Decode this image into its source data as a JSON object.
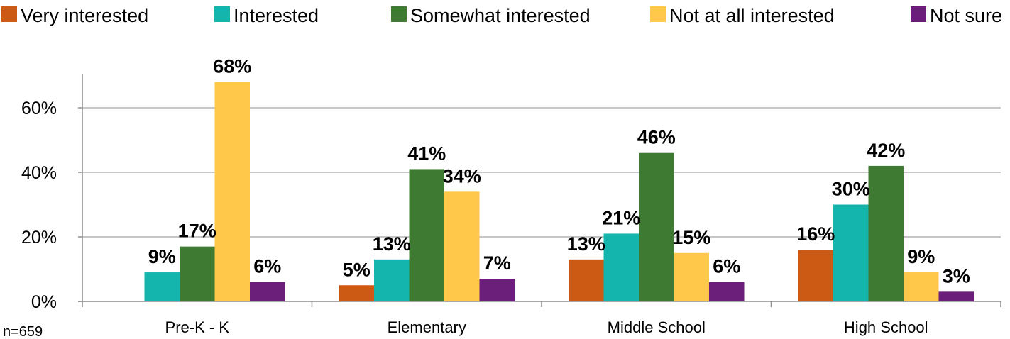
{
  "chart_data": {
    "type": "bar",
    "categories": [
      "Pre-K - K",
      "Elementary",
      "Middle School",
      "High School"
    ],
    "series": [
      {
        "name": "Very interested",
        "color": "#CC5A14",
        "values": [
          null,
          5,
          13,
          16
        ],
        "labels": [
          "",
          "5%",
          "13%",
          "16%"
        ]
      },
      {
        "name": "Interested",
        "color": "#14B5AC",
        "values": [
          9,
          13,
          21,
          30
        ],
        "labels": [
          "9%",
          "13%",
          "21%",
          "30%"
        ]
      },
      {
        "name": "Somewhat interested",
        "color": "#3E7A32",
        "values": [
          17,
          41,
          46,
          42
        ],
        "labels": [
          "17%",
          "41%",
          "46%",
          "42%"
        ]
      },
      {
        "name": "Not at all interested",
        "color": "#FFC84B",
        "values": [
          68,
          34,
          15,
          9
        ],
        "labels": [
          "68%",
          "34%",
          "15%",
          "9%"
        ]
      },
      {
        "name": "Not sure",
        "color": "#6B1F7A",
        "values": [
          6,
          7,
          6,
          3
        ],
        "labels": [
          "6%",
          "7%",
          "6%",
          "3%"
        ]
      }
    ],
    "y_ticks": [
      0,
      20,
      40,
      60
    ],
    "y_tick_labels": [
      "0%",
      "20%",
      "40%",
      "60%"
    ],
    "ylim": [
      0,
      70
    ],
    "grid": true,
    "legend_position": "top",
    "note": "n=659"
  }
}
